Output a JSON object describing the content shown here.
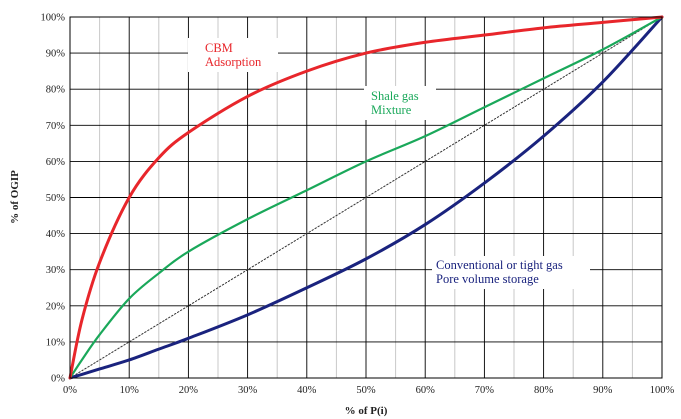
{
  "chart_data": {
    "type": "line",
    "title": "",
    "xlabel": "% of P(i)",
    "ylabel": "% of OGIP",
    "xlim": [
      0,
      100
    ],
    "ylim": [
      0,
      100
    ],
    "grid": true,
    "legend": "none",
    "x_ticks": [
      "0%",
      "10%",
      "20%",
      "30%",
      "40%",
      "50%",
      "60%",
      "70%",
      "80%",
      "90%",
      "100%"
    ],
    "y_ticks": [
      "0%",
      "10%",
      "20%",
      "30%",
      "40%",
      "50%",
      "60%",
      "70%",
      "80%",
      "90%",
      "100%"
    ],
    "x": [
      0,
      2,
      5,
      10,
      15,
      20,
      30,
      40,
      50,
      60,
      70,
      80,
      90,
      100
    ],
    "series": [
      {
        "name": "CBM\nAdsorption",
        "color": "#e8262b",
        "values": [
          0,
          16,
          32,
          50,
          61,
          68,
          78,
          85,
          90,
          93,
          95,
          97,
          98.5,
          100
        ]
      },
      {
        "name": "Shale gas\nMixture",
        "color": "#1aa85a",
        "values": [
          0,
          5,
          12,
          22,
          29,
          35,
          44,
          52,
          60,
          67,
          75,
          83,
          91,
          100
        ]
      },
      {
        "name": "Conventional or tight gas\nPore volume storage",
        "color": "#1a237e",
        "values": [
          0,
          1,
          2.5,
          5,
          8,
          11,
          17.5,
          25,
          33,
          42.5,
          54,
          67,
          82,
          100
        ]
      },
      {
        "name": "",
        "color": "#333333",
        "dotted": true,
        "values": [
          0,
          2,
          5,
          10,
          15,
          20,
          30,
          40,
          50,
          60,
          70,
          80,
          90,
          100
        ]
      }
    ],
    "annotations": [
      {
        "text": "CBM",
        "color": "#e8262b"
      },
      {
        "text": "Adsorption",
        "color": "#e8262b"
      },
      {
        "text": "Shale gas",
        "color": "#1aa85a"
      },
      {
        "text": "Mixture",
        "color": "#1aa85a"
      },
      {
        "text": "Conventional or tight gas",
        "color": "#1a237e"
      },
      {
        "text": "Pore volume storage",
        "color": "#1a237e"
      }
    ]
  }
}
